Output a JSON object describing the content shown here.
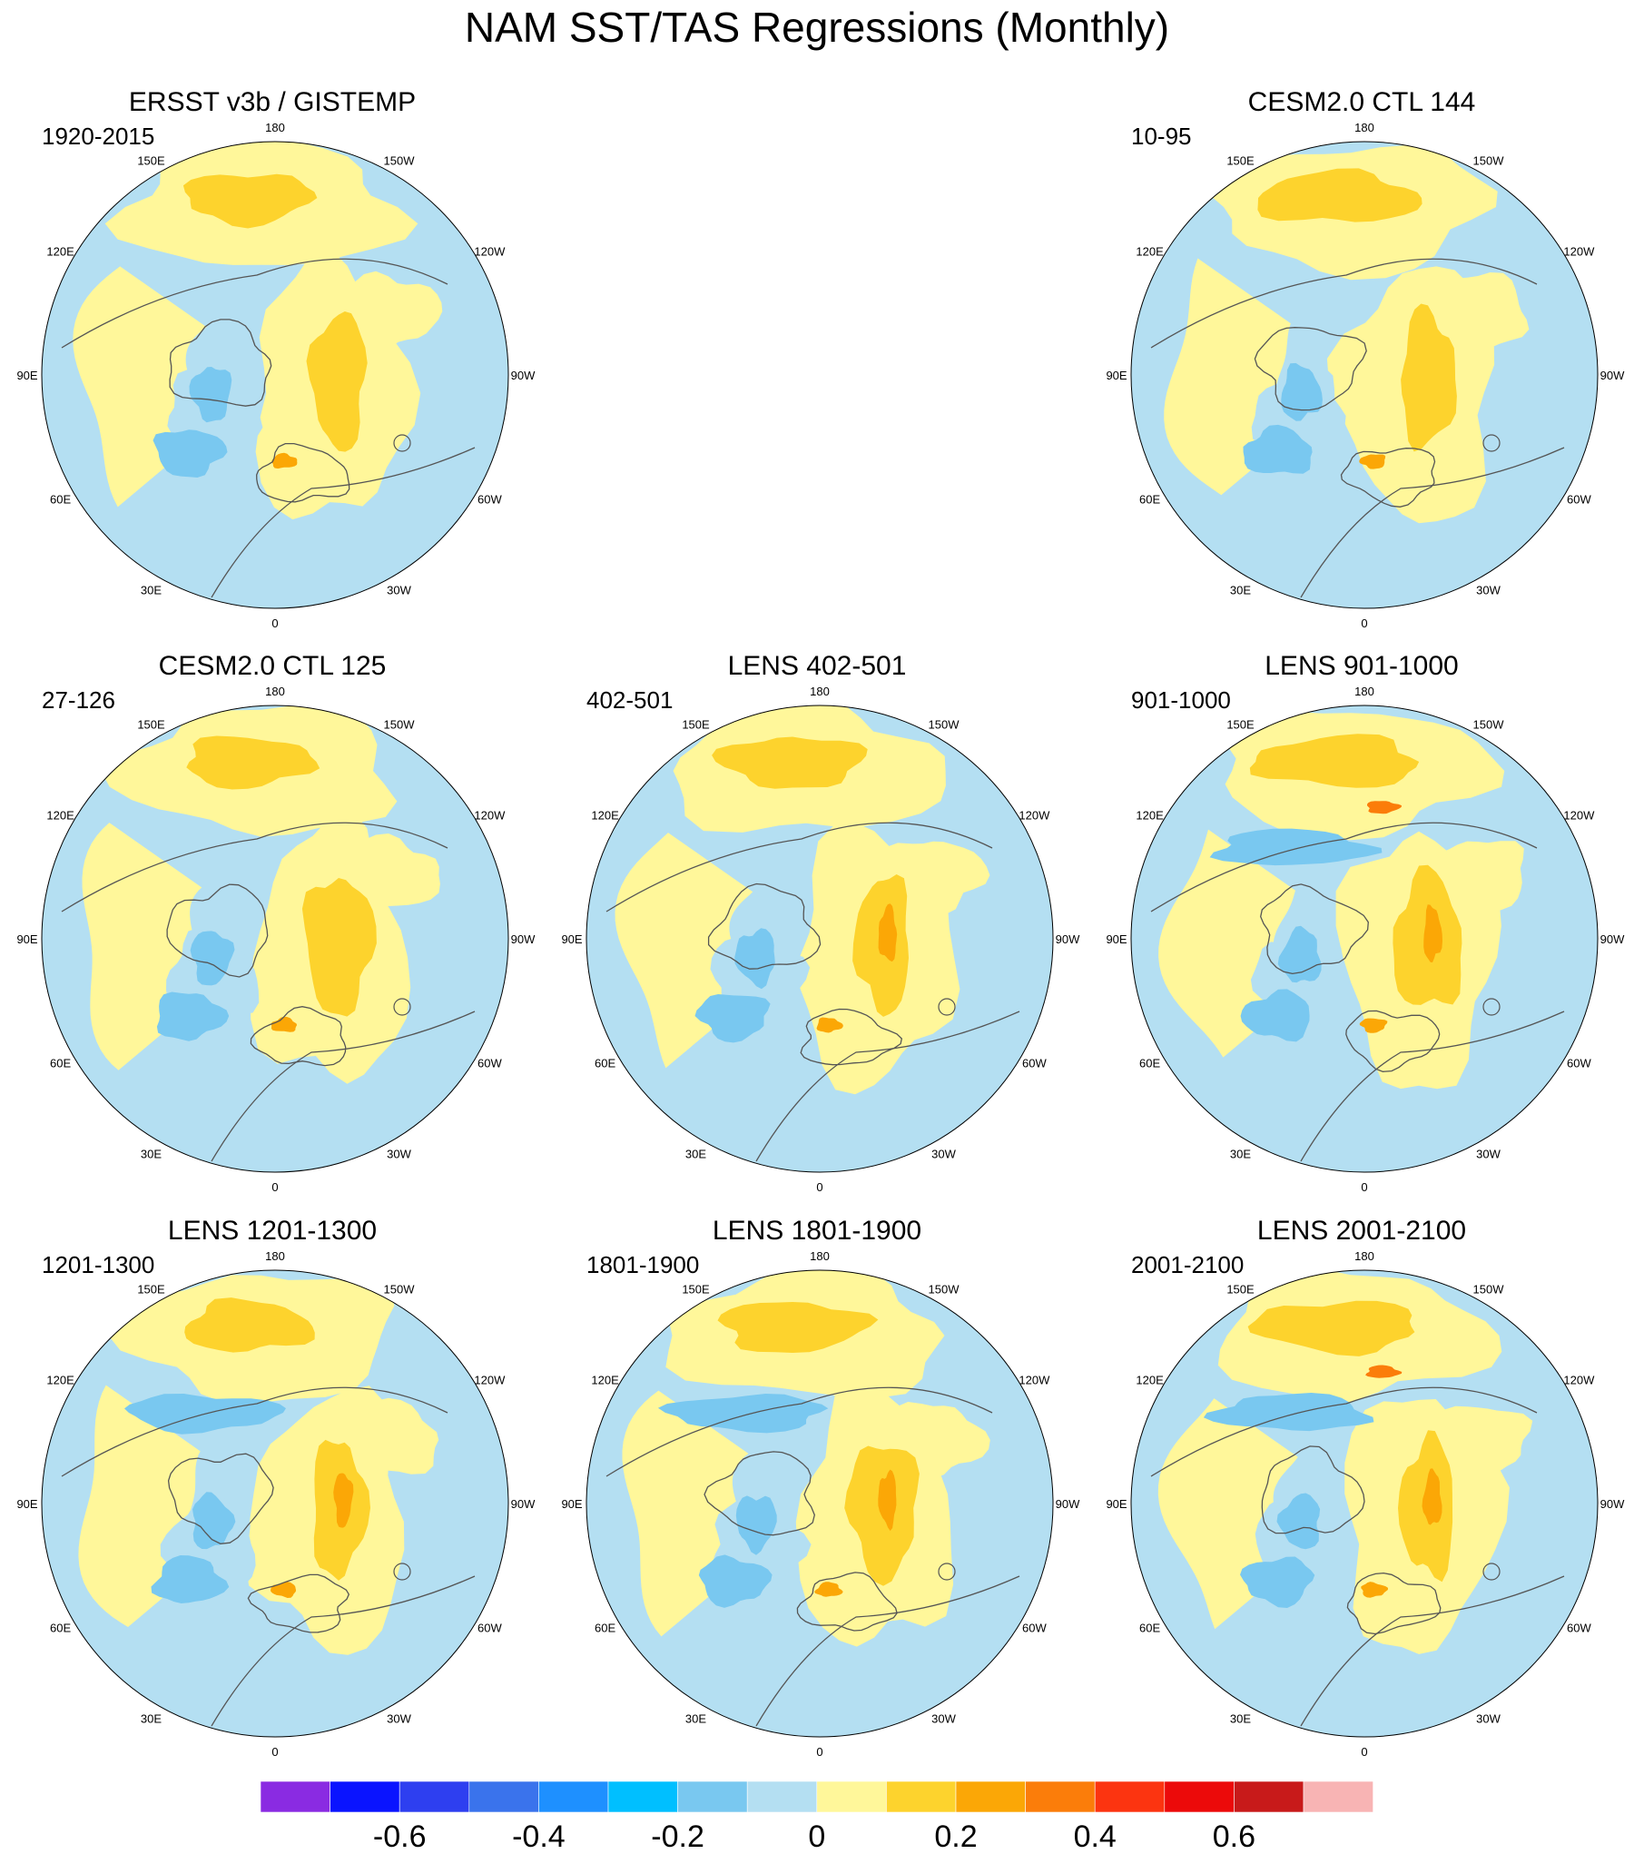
{
  "title": "NAM SST/TAS Regressions (Monthly)",
  "longitude_labels": [
    "180",
    "150E",
    "120E",
    "90E",
    "60E",
    "30E",
    "0",
    "30W",
    "60W",
    "90W",
    "120W",
    "150W"
  ],
  "land_color": "#ffffff",
  "coast_color": "#555555",
  "panels": [
    {
      "title": "ERSST v3b / GISTEMP",
      "subtitle": "1920-2015",
      "visible": true
    },
    {
      "title": "",
      "subtitle": "",
      "visible": false
    },
    {
      "title": "CESM2.0 CTL 144",
      "subtitle": "10-95",
      "visible": true
    },
    {
      "title": "CESM2.0 CTL 125",
      "subtitle": "27-126",
      "visible": true
    },
    {
      "title": "LENS 402-501",
      "subtitle": "402-501",
      "visible": true
    },
    {
      "title": "LENS 901-1000",
      "subtitle": "901-1000",
      "visible": true
    },
    {
      "title": "LENS 1201-1300",
      "subtitle": "1201-1300",
      "visible": true
    },
    {
      "title": "LENS 1801-1900",
      "subtitle": "1801-1900",
      "visible": true
    },
    {
      "title": "LENS 2001-2100",
      "subtitle": "2001-2100",
      "visible": true
    }
  ],
  "colorbar": {
    "colors": [
      "#8a2be2",
      "#0a14ff",
      "#2e3ff0",
      "#3a73ec",
      "#1e90ff",
      "#00bfff",
      "#79c8f0",
      "#b4dff2",
      "#fff79a",
      "#fdd32d",
      "#fba706",
      "#fb7d0a",
      "#fc3410",
      "#ec0a0a",
      "#c81a1a",
      "#f8b4b4"
    ],
    "labels": [
      "-0.6",
      "-0.4",
      "-0.2",
      "0",
      "0.2",
      "0.4",
      "0.6"
    ]
  }
}
